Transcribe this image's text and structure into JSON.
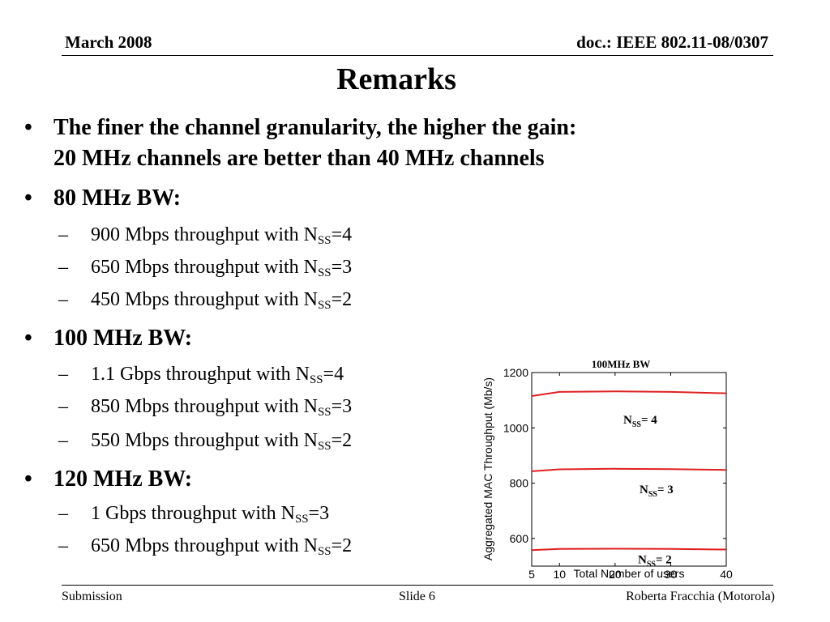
{
  "header": {
    "date": "March 2008",
    "doc": "doc.: IEEE 802.11-08/0307"
  },
  "title": "Remarks",
  "bullets": {
    "b1_line1": "The finer the channel granularity, the higher the gain:",
    "b1_line2": "20 MHz channels are better than 40 MHz channels",
    "b2": "80 MHz BW:",
    "b2_items": [
      {
        "pre": "900 Mbps throughput with N",
        "sub": "SS",
        "post": "=4"
      },
      {
        "pre": "650 Mbps throughput with N",
        "sub": "SS",
        "post": "=3"
      },
      {
        "pre": "450 Mbps throughput with N",
        "sub": "SS",
        "post": "=2"
      }
    ],
    "b3": "100 MHz BW:",
    "b3_items": [
      {
        "pre": "1.1 Gbps throughput with N",
        "sub": "SS",
        "post": "=4"
      },
      {
        "pre": "850 Mbps throughput with N",
        "sub": "SS",
        "post": "=3"
      },
      {
        "pre": "550 Mbps throughput with N",
        "sub": "SS",
        "post": "=2"
      }
    ],
    "b4": "120 MHz BW:",
    "b4_items": [
      {
        "pre": "1 Gbps throughput with N",
        "sub": "SS",
        "post": "=3"
      },
      {
        "pre": "650 Mbps throughput with N",
        "sub": "SS",
        "post": "=2"
      }
    ]
  },
  "footer": {
    "left": "Submission",
    "center": "Slide 6",
    "right": "Roberta Fracchia (Motorola)"
  },
  "chart_data": {
    "type": "line",
    "title": "100MHz BW",
    "xlabel": "Total Number of users",
    "ylabel": "Aggregated MAC Throughput (Mb/s)",
    "xlim": [
      5,
      40
    ],
    "ylim": [
      500,
      1200
    ],
    "x_ticks": [
      5,
      10,
      20,
      30,
      40
    ],
    "y_ticks": [
      600,
      800,
      1000,
      1200
    ],
    "grid": false,
    "line_color": "#e02020",
    "series": [
      {
        "label_pre": "N",
        "label_sub": "SS",
        "label_post": "= 4",
        "x": [
          5,
          10,
          20,
          30,
          40
        ],
        "y": [
          1115,
          1130,
          1132,
          1130,
          1125
        ]
      },
      {
        "label_pre": "N",
        "label_sub": "SS",
        "label_post": "= 3",
        "x": [
          5,
          10,
          20,
          30,
          40
        ],
        "y": [
          843,
          850,
          852,
          851,
          848
        ]
      },
      {
        "label_pre": "N",
        "label_sub": "SS",
        "label_post": "= 2",
        "x": [
          5,
          10,
          20,
          30,
          40
        ],
        "y": [
          558,
          562,
          563,
          562,
          560
        ]
      }
    ]
  }
}
